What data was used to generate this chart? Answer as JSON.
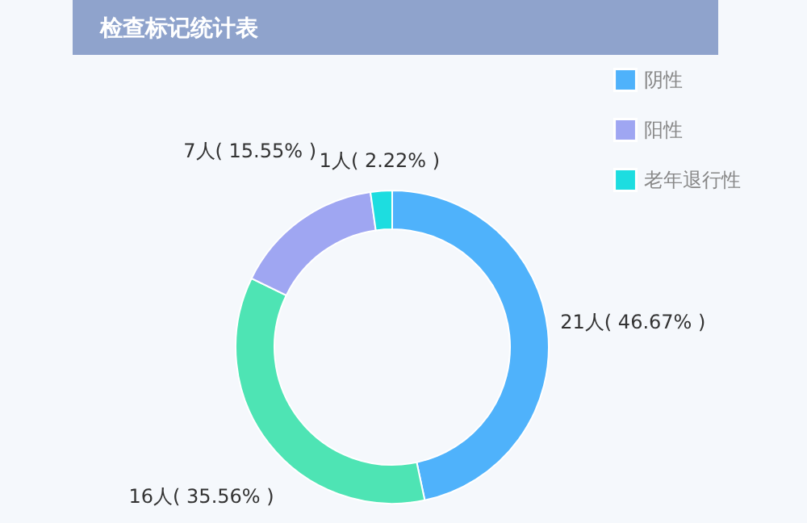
{
  "chart_data": {
    "type": "donut",
    "title": "检查标记统计表",
    "categories": [
      "阴性",
      null,
      "阳性",
      "老年退行性"
    ],
    "values": [
      21,
      16,
      7,
      1
    ],
    "colors": [
      "#4fb2fb",
      "#4ee4b4",
      "#9fa6f2",
      "#1ddde0"
    ],
    "value_labels": [
      "21人( 46.67% )",
      "16人( 35.56% )",
      "7人( 15.55% )",
      "1人( 2.22% )"
    ],
    "legend": "top right"
  }
}
